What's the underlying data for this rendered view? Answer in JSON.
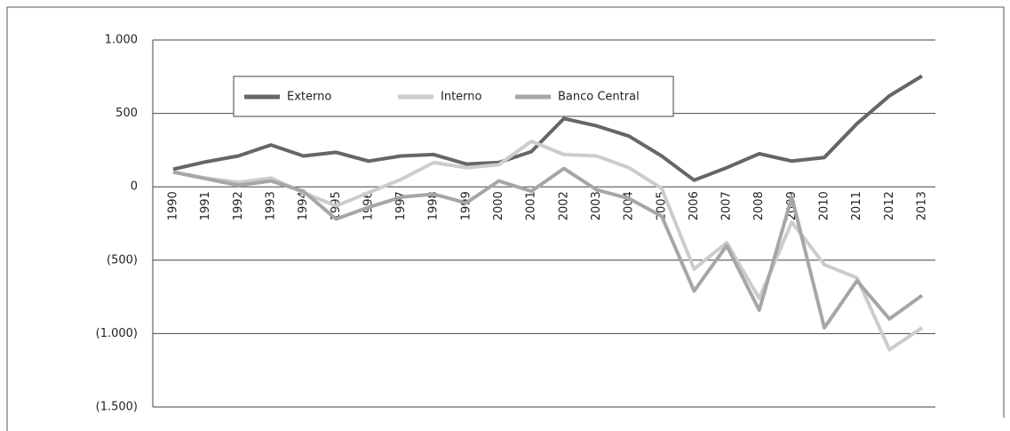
{
  "chart_data": {
    "type": "line",
    "categories": [
      "1990",
      "1991",
      "1992",
      "1993",
      "1994",
      "1995",
      "1996",
      "1997",
      "1998",
      "1999",
      "2000",
      "2001",
      "2002",
      "2003",
      "2004",
      "2005",
      "2006",
      "2007",
      "2008",
      "2009",
      "2010",
      "2011",
      "2012",
      "2013"
    ],
    "series": [
      {
        "name": "Externo",
        "color": "#666666",
        "values": [
          120,
          170,
          210,
          285,
          210,
          235,
          175,
          210,
          220,
          155,
          165,
          240,
          465,
          415,
          345,
          210,
          45,
          130,
          225,
          175,
          200,
          430,
          620,
          755
        ]
      },
      {
        "name": "Interno",
        "color": "#cccccc",
        "values": [
          100,
          60,
          30,
          60,
          -40,
          -130,
          -40,
          50,
          165,
          130,
          150,
          310,
          220,
          210,
          130,
          -10,
          -560,
          -380,
          -760,
          -240,
          -530,
          -620,
          -1110,
          -960
        ]
      },
      {
        "name": "Banco Central",
        "color": "#a6a6a6",
        "values": [
          100,
          55,
          10,
          40,
          -30,
          -220,
          -140,
          -70,
          -50,
          -110,
          40,
          -30,
          125,
          -20,
          -80,
          -200,
          -710,
          -400,
          -840,
          -70,
          -960,
          -640,
          -900,
          -740
        ]
      }
    ],
    "ylim": [
      -1500,
      1000
    ],
    "yticks": [
      {
        "value": -1500,
        "label": "(1.500)"
      },
      {
        "value": -1000,
        "label": "(1.000)"
      },
      {
        "value": -500,
        "label": "(500)"
      },
      0,
      500,
      {
        "value": 1000,
        "label": "1.000"
      }
    ],
    "grid": true
  }
}
